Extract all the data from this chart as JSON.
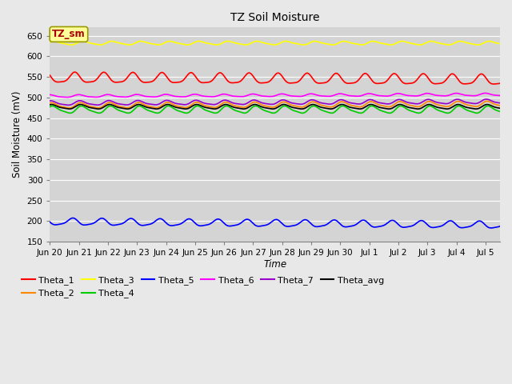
{
  "title": "TZ Soil Moisture",
  "ylabel": "Soil Moisture (mV)",
  "xlabel": "Time",
  "background_color": "#e8e8e8",
  "plot_bg_color": "#d4d4d4",
  "ylim": [
    150,
    670
  ],
  "yticks": [
    150,
    200,
    250,
    300,
    350,
    400,
    450,
    500,
    550,
    600,
    650
  ],
  "xlim": [
    0,
    15.5
  ],
  "n_points": 1500,
  "series_order": [
    "Theta_3",
    "Theta_1",
    "Theta_6",
    "Theta_7",
    "Theta_2",
    "Theta_avg",
    "Theta_4",
    "Theta_5"
  ],
  "series": {
    "Theta_1": {
      "color": "#ff0000",
      "mean": 547,
      "amp": 12,
      "period": 1.0,
      "phase": 2.5,
      "trend": -5
    },
    "Theta_2": {
      "color": "#ff8800",
      "mean": 480,
      "amp": 6,
      "period": 1.0,
      "phase": 1.0,
      "trend": 4
    },
    "Theta_3": {
      "color": "#ffff00",
      "mean": 632,
      "amp": 4,
      "period": 1.0,
      "phase": 0.5,
      "trend": 0
    },
    "Theta_4": {
      "color": "#00cc00",
      "mean": 470,
      "amp": 8,
      "period": 1.0,
      "phase": 0.8,
      "trend": 0
    },
    "Theta_5": {
      "color": "#0000ff",
      "mean": 198,
      "amp": 8,
      "period": 1.0,
      "phase": 3.0,
      "trend": -8
    },
    "Theta_6": {
      "color": "#ff00ff",
      "mean": 503,
      "amp": 3,
      "period": 1.0,
      "phase": 1.5,
      "trend": 4
    },
    "Theta_7": {
      "color": "#9900cc",
      "mean": 486,
      "amp": 5,
      "period": 1.0,
      "phase": 1.2,
      "trend": 4
    },
    "Theta_avg": {
      "color": "#000000",
      "mean": 477,
      "amp": 5,
      "period": 1.0,
      "phase": 1.0,
      "trend": 0
    }
  },
  "xtick_labels": [
    "Jun 20",
    "Jun 21",
    "Jun 22",
    "Jun 23",
    "Jun 24",
    "Jun 25",
    "Jun 26",
    "Jun 27",
    "Jun 28",
    "Jun 29",
    "Jun 30",
    "Jul 1",
    "Jul 2",
    "Jul 3",
    "Jul 4",
    "Jul 5"
  ],
  "xtick_positions": [
    0,
    1,
    2,
    3,
    4,
    5,
    6,
    7,
    8,
    9,
    10,
    11,
    12,
    13,
    14,
    15
  ],
  "legend_entries": [
    "Theta_1",
    "Theta_2",
    "Theta_3",
    "Theta_4",
    "Theta_5",
    "Theta_6",
    "Theta_7",
    "Theta_avg"
  ],
  "legend_label_box": "TZ_sm",
  "legend_box_color": "#ffff99",
  "legend_box_text_color": "#aa0000"
}
